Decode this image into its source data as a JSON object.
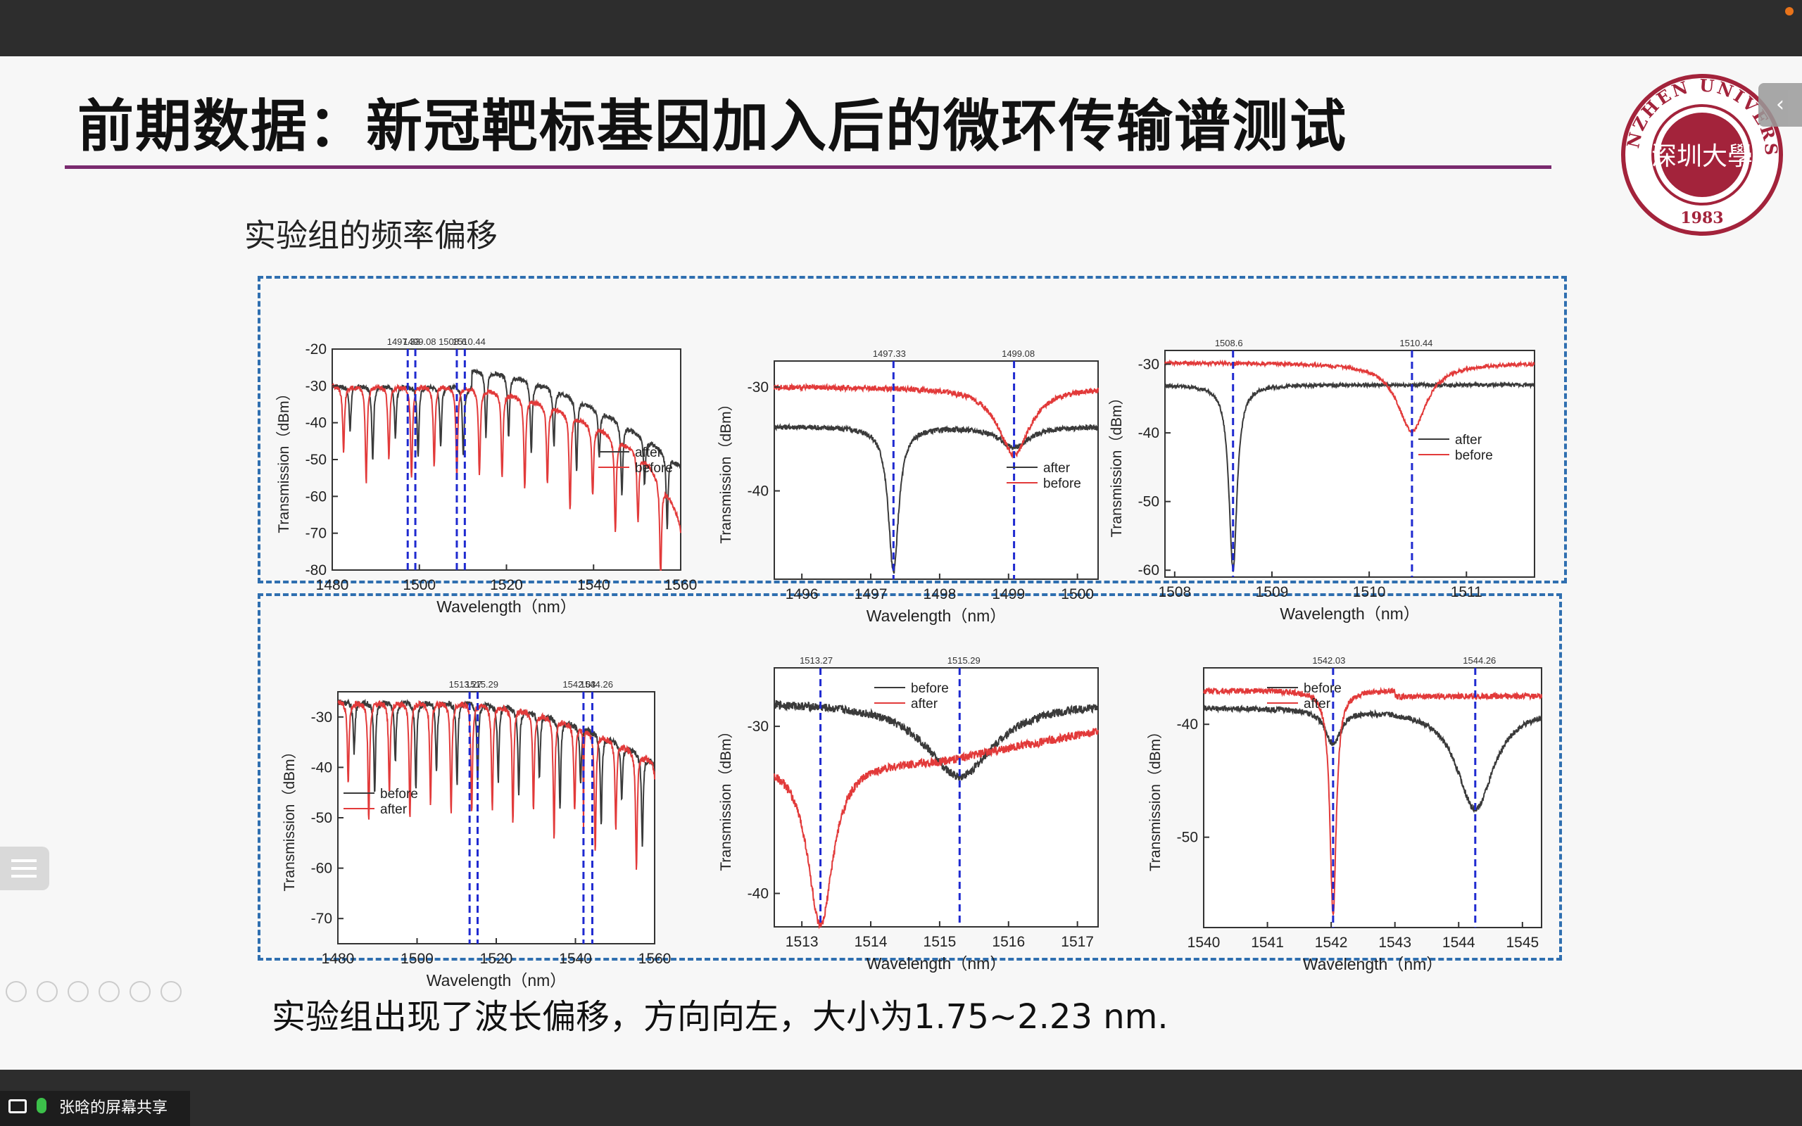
{
  "slide": {
    "title": "前期数据：新冠靶标基因加入后的微环传输谱测试",
    "subtitle": "实验组的频率偏移",
    "conclusion": "实验组出现了波长偏移，方向向左，大小为1.75~2.23 nm.",
    "logo": {
      "text_top": "SHENZHEN UNIVERSITY",
      "year": "1983",
      "characters": "深圳大學"
    }
  },
  "share": {
    "label": "张晗的屏幕共享"
  },
  "colors": {
    "title_rule": "#7a2a6f",
    "dash_box": "#2f6fb0",
    "marker": "#1f2ad0",
    "series_red": "#e23a3a",
    "series_black": "#3a3a3a",
    "logo": "#a3233b"
  },
  "chart_data": [
    {
      "type": "line",
      "xlabel": "Wavelength（nm）",
      "ylabel": "Transmission（dBm）",
      "xlim": [
        1480,
        1560
      ],
      "ylim": [
        -80,
        -20
      ],
      "xticks": [
        1480,
        1500,
        1520,
        1540,
        1560
      ],
      "yticks": [
        -20,
        -30,
        -40,
        -50,
        -60,
        -70,
        -80
      ],
      "series": [
        {
          "name": "after",
          "color": "#3a3a3a"
        },
        {
          "name": "before",
          "color": "#e23a3a"
        }
      ],
      "markers": [
        1497.33,
        1499.08,
        1508.6,
        1510.44
      ],
      "marker_labels": [
        "1497.33",
        "1499.08",
        "1508.6",
        "1510.44"
      ],
      "legend": "right"
    },
    {
      "type": "line",
      "xlabel": "Wavelength（nm）",
      "ylabel": "Transmission（dBm）",
      "xlim": [
        1495.6,
        1500.3
      ],
      "ylim": [
        -48.5,
        -27.5
      ],
      "xticks": [
        1496,
        1497,
        1498,
        1499,
        1500
      ],
      "yticks": [
        -30,
        -40
      ],
      "series": [
        {
          "name": "after",
          "color": "#3a3a3a"
        },
        {
          "name": "before",
          "color": "#e23a3a"
        }
      ],
      "markers": [
        1497.33,
        1499.08
      ],
      "marker_labels": [
        "1497.33",
        "1499.08"
      ],
      "legend": "right"
    },
    {
      "type": "line",
      "xlabel": "Wavelength（nm）",
      "ylabel": "Transmission（dBm）",
      "xlim": [
        1507.9,
        1511.7
      ],
      "ylim": [
        -61,
        -28
      ],
      "xticks": [
        1508,
        1509,
        1510,
        1511
      ],
      "yticks": [
        -30,
        -40,
        -50,
        -60
      ],
      "series": [
        {
          "name": "after",
          "color": "#3a3a3a"
        },
        {
          "name": "before",
          "color": "#e23a3a"
        }
      ],
      "markers": [
        1508.6,
        1510.44
      ],
      "marker_labels": [
        "1508.6",
        "1510.44"
      ],
      "legend": "right"
    },
    {
      "type": "line",
      "xlabel": "Wavelength（nm）",
      "ylabel": "Transmission（dBm）",
      "xlim": [
        1480,
        1560
      ],
      "ylim": [
        -75,
        -25
      ],
      "xticks": [
        1480,
        1500,
        1520,
        1540,
        1560
      ],
      "yticks": [
        -30,
        -40,
        -50,
        -60,
        -70
      ],
      "series": [
        {
          "name": "before",
          "color": "#3a3a3a"
        },
        {
          "name": "after",
          "color": "#e23a3a"
        }
      ],
      "markers": [
        1513.27,
        1515.29,
        1542.03,
        1544.26
      ],
      "marker_labels": [
        "1513.27",
        "1515.29",
        "1542.03",
        "1544.26"
      ],
      "legend": "left"
    },
    {
      "type": "line",
      "xlabel": "Wavelength（nm）",
      "ylabel": "Transmission（dBm）",
      "xlim": [
        1512.6,
        1517.3
      ],
      "ylim": [
        -42,
        -26.5
      ],
      "xticks": [
        1513,
        1514,
        1515,
        1516,
        1517
      ],
      "yticks": [
        -30,
        -40
      ],
      "series": [
        {
          "name": "before",
          "color": "#3a3a3a"
        },
        {
          "name": "after",
          "color": "#e23a3a"
        }
      ],
      "markers": [
        1513.27,
        1515.29
      ],
      "marker_labels": [
        "1513.27",
        "1515.29"
      ],
      "legend": "top"
    },
    {
      "type": "line",
      "xlabel": "Wavelength（nm）",
      "ylabel": "Transmission（dBm）",
      "xlim": [
        1540,
        1545.3
      ],
      "ylim": [
        -58,
        -35
      ],
      "xticks": [
        1540,
        1541,
        1542,
        1543,
        1544,
        1545
      ],
      "yticks": [
        -40,
        -50
      ],
      "series": [
        {
          "name": "before",
          "color": "#3a3a3a"
        },
        {
          "name": "after",
          "color": "#e23a3a"
        }
      ],
      "markers": [
        1542.03,
        1544.26
      ],
      "marker_labels": [
        "1542.03",
        "1544.26"
      ],
      "legend": "top"
    }
  ]
}
